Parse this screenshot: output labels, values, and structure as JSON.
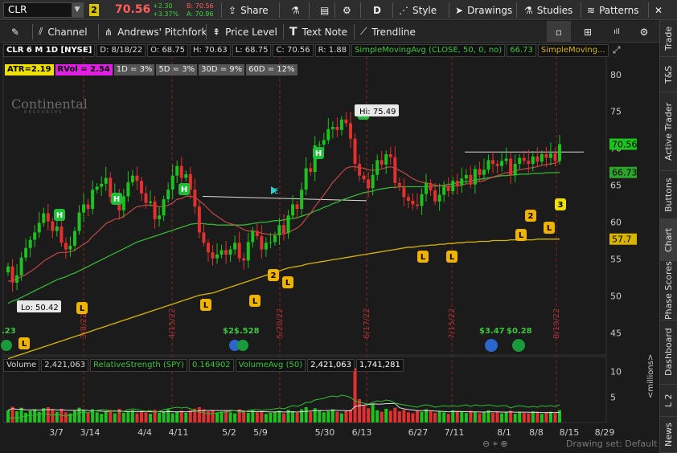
{
  "symbol": "CLR",
  "link_badge": "2",
  "last_price": "70.56",
  "change": "+2.30",
  "change_pct": "+3.37%",
  "bid": "B: 70.56",
  "ask": "A: 70.96",
  "toolbar": {
    "share": "Share",
    "d_label": "D",
    "style": "Style",
    "drawings": "Drawings",
    "studies": "Studies",
    "patterns": "Patterns"
  },
  "drawing_tools": [
    "Channel",
    "Andrews' Pitchfork",
    "Price Level",
    "Text Note",
    "Trendline"
  ],
  "right_tabs": [
    "Trade",
    "T&S",
    "Active Trader",
    "Buttons",
    "Chart",
    "Phase Scores",
    "Dashboard",
    "L 2",
    "News"
  ],
  "info": {
    "title": "CLR 6 M 1D [NYSE]",
    "date": "D: 8/18/22",
    "open": "O: 68.75",
    "high": "H: 70.63",
    "low": "L: 68.75",
    "close": "C: 70.56",
    "range": "R: 1.88",
    "sma50_label": "SimpleMovingAvg (CLOSE, 50, 0, no)",
    "sma50_value": "66.73",
    "sma200_label": "SimpleMoving..."
  },
  "stats": {
    "atr": "ATR=2.19",
    "rvol": "RVol = 2.54",
    "d1": "1D = 3%",
    "d5": "5D = 3%",
    "d30": "30D = 9%",
    "d60": "60D = 12%"
  },
  "logo": {
    "name": "Continental",
    "sub": "RESOURCES"
  },
  "price_axis": {
    "ticks": [
      "80",
      "75",
      "70",
      "65",
      "60",
      "55",
      "50",
      "45"
    ],
    "last_tag": "70.56",
    "sma50_tag": "66.73",
    "sma200_tag": "57.7"
  },
  "annotations": {
    "hi": "Hi: 75.49",
    "lo": "Lo: 50.42",
    "partial_left": ".23",
    "div1": "$2$.528",
    "div2": "$3.47",
    "div3": "$0.28"
  },
  "vertical_dates": [
    "3/8/22",
    "4/15/22",
    "5/20/22",
    "6/17/22",
    "7/15/22",
    "8/19/22"
  ],
  "volume": {
    "label": "Volume",
    "value": "2,421,063",
    "rs_label": "RelativeStrength (SPY)",
    "rs_value": "0.164902",
    "vavg_label": "VolumeAvg (50)",
    "vavg_value": "2,421,063",
    "vavg_value2": "1,741,281",
    "axis_ticks": [
      "10",
      "5"
    ],
    "units": "<millions>"
  },
  "x_axis": [
    "3/7",
    "3/14",
    "4/4",
    "4/11",
    "5/2",
    "5/9",
    "5/30",
    "6/13",
    "6/27",
    "7/11",
    "8/1",
    "8/8",
    "8/15",
    "8/29"
  ],
  "footer": {
    "drawing_set": "Drawing set: Default"
  },
  "colors": {
    "up": "#1ec21e",
    "down": "#e23030",
    "sma50": "#36b436",
    "sma200": "#d7b400",
    "ema": "#e05050",
    "vline": "#8a1f1f"
  },
  "chart_data": {
    "type": "candlestick",
    "x": [
      "2/18",
      "2/22",
      "2/23",
      "2/24",
      "2/25",
      "2/28",
      "3/1",
      "3/2",
      "3/3",
      "3/4",
      "3/7",
      "3/8",
      "3/9",
      "3/10",
      "3/11",
      "3/14",
      "3/15",
      "3/16",
      "3/17",
      "3/18",
      "3/21",
      "3/22",
      "3/23",
      "3/24",
      "3/25",
      "3/28",
      "3/29",
      "3/30",
      "3/31",
      "4/1",
      "4/4",
      "4/5",
      "4/6",
      "4/7",
      "4/8",
      "4/11",
      "4/12",
      "4/13",
      "4/14",
      "4/18",
      "4/19",
      "4/20",
      "4/21",
      "4/22",
      "4/25",
      "4/26",
      "4/27",
      "4/28",
      "4/29",
      "5/2",
      "5/3",
      "5/4",
      "5/5",
      "5/6",
      "5/9",
      "5/10",
      "5/11",
      "5/12",
      "5/13",
      "5/16",
      "5/17",
      "5/18",
      "5/19",
      "5/20",
      "5/23",
      "5/24",
      "5/25",
      "5/26",
      "5/27",
      "5/31",
      "6/1",
      "6/2",
      "6/3",
      "6/6",
      "6/7",
      "6/8",
      "6/9",
      "6/10",
      "6/13",
      "6/14",
      "6/15",
      "6/16",
      "6/17",
      "6/21",
      "6/22",
      "6/23",
      "6/24",
      "6/27",
      "6/28",
      "6/29",
      "6/30",
      "7/1",
      "7/5",
      "7/6",
      "7/7",
      "7/8",
      "7/11",
      "7/12",
      "7/13",
      "7/14",
      "7/15",
      "7/18",
      "7/19",
      "7/20",
      "7/21",
      "7/22",
      "7/25",
      "7/26",
      "7/27",
      "7/28",
      "7/29",
      "8/1",
      "8/2",
      "8/3",
      "8/4",
      "8/5",
      "8/8",
      "8/9",
      "8/10",
      "8/11",
      "8/12",
      "8/15",
      "8/16",
      "8/17",
      "8/18"
    ],
    "close": [
      54.0,
      51.8,
      52.8,
      55.2,
      56.5,
      57.6,
      58.6,
      59.9,
      61.2,
      60.1,
      58.8,
      59.4,
      57.2,
      56.3,
      56.8,
      58.8,
      61.3,
      62.4,
      61.8,
      64.4,
      64.8,
      65.2,
      66.0,
      63.4,
      64.0,
      61.6,
      63.5,
      65.4,
      66.3,
      65.6,
      63.9,
      62.6,
      62.8,
      60.4,
      60.9,
      63.1,
      64.4,
      66.3,
      67.6,
      66.0,
      66.5,
      64.4,
      62.1,
      58.6,
      57.2,
      55.9,
      55.1,
      55.6,
      56.2,
      55.6,
      56.3,
      57.2,
      55.1,
      54.8,
      57.3,
      58.8,
      58.1,
      56.3,
      57.2,
      57.3,
      58.2,
      59.6,
      58.5,
      60.9,
      62.4,
      61.8,
      64.4,
      67.3,
      66.8,
      70.4,
      70.5,
      71.1,
      72.6,
      72.9,
      72.5,
      73.9,
      73.4,
      71.3,
      67.9,
      66.3,
      65.8,
      64.6,
      66.4,
      68.4,
      67.8,
      69.2,
      68.8,
      65.3,
      64.7,
      63.4,
      62.9,
      62.4,
      62.2,
      63.8,
      65.3,
      64.3,
      62.8,
      63.7,
      64.8,
      64.2,
      65.6,
      65.0,
      65.9,
      66.4,
      65.1,
      67.2,
      66.4,
      67.1,
      68.4,
      67.9,
      67.6,
      68.3,
      68.6,
      66.4,
      67.9,
      68.7,
      68.3,
      67.9,
      68.9,
      68.2,
      69.2,
      68.7,
      69.3,
      68.3,
      70.56
    ],
    "ema_20": [
      52.0,
      52.1,
      52.3,
      52.6,
      52.9,
      53.3,
      53.7,
      54.2,
      54.7,
      55.1,
      55.4,
      55.8,
      55.9,
      55.9,
      56.0,
      56.2,
      56.6,
      57.0,
      57.4,
      58.1,
      58.6,
      59.2,
      59.8,
      60.1,
      60.4,
      60.5,
      60.8,
      61.2,
      61.7,
      62.1,
      62.2,
      62.3,
      62.3,
      62.2,
      62.1,
      62.1,
      62.3,
      62.6,
      63.1,
      63.2,
      63.5,
      63.5,
      63.4,
      62.9,
      62.4,
      61.8,
      61.2,
      60.8,
      60.4,
      60.0,
      59.8,
      59.6,
      59.3,
      59.0,
      58.8,
      58.8,
      58.7,
      58.5,
      58.4,
      58.3,
      58.3,
      58.4,
      58.4,
      58.6,
      58.9,
      59.2,
      59.7,
      60.5,
      61.2,
      62.1,
      62.9,
      63.7,
      64.5,
      65.4,
      66.0,
      66.7,
      67.3,
      67.5,
      67.5,
      67.4,
      67.3,
      67.1,
      67.0,
      67.1,
      67.2,
      67.4,
      67.5,
      67.3,
      67.0,
      66.7,
      66.3,
      65.9,
      65.6,
      65.4,
      65.3,
      65.2,
      65.0,
      64.9,
      64.9,
      64.8,
      64.9,
      64.9,
      65.0,
      65.2,
      65.2,
      65.4,
      65.5,
      65.6,
      65.9,
      66.1,
      66.3,
      66.5,
      66.7,
      66.7,
      66.9,
      67.1,
      67.2,
      67.3,
      67.4,
      67.5,
      67.7,
      67.8,
      67.9,
      68.0,
      68.3
    ],
    "sma_50": [
      49.0,
      49.3,
      49.5,
      49.8,
      50.1,
      50.4,
      50.7,
      51.0,
      51.3,
      51.6,
      51.9,
      52.2,
      52.4,
      52.6,
      52.9,
      53.1,
      53.4,
      53.7,
      54.0,
      54.3,
      54.6,
      54.9,
      55.2,
      55.5,
      55.8,
      56.1,
      56.4,
      56.7,
      57.0,
      57.3,
      57.5,
      57.7,
      57.9,
      58.1,
      58.3,
      58.5,
      58.7,
      58.9,
      59.1,
      59.3,
      59.5,
      59.7,
      59.8,
      59.8,
      59.8,
      59.7,
      59.7,
      59.6,
      59.6,
      59.6,
      59.6,
      59.6,
      59.6,
      59.6,
      59.7,
      59.8,
      59.9,
      60.0,
      60.0,
      60.1,
      60.2,
      60.2,
      60.3,
      60.4,
      60.5,
      60.6,
      60.8,
      61.0,
      61.2,
      61.5,
      61.7,
      62.0,
      62.2,
      62.5,
      62.7,
      63.0,
      63.2,
      63.4,
      63.6,
      63.8,
      64.0,
      64.1,
      64.2,
      64.4,
      64.5,
      64.6,
      64.7,
      64.7,
      64.8,
      64.8,
      64.8,
      64.8,
      64.8,
      64.8,
      64.8,
      64.8,
      64.9,
      64.9,
      65.0,
      65.1,
      65.2,
      65.3,
      65.4,
      65.5,
      65.6,
      65.7,
      65.8,
      65.9,
      66.0,
      66.1,
      66.2,
      66.3,
      66.3,
      66.4,
      66.4,
      66.5,
      66.5,
      66.5,
      66.6,
      66.6,
      66.6,
      66.7,
      66.7,
      66.7,
      66.73
    ],
    "sma_200": [
      41.5,
      41.7,
      41.9,
      42.1,
      42.3,
      42.5,
      42.7,
      42.9,
      43.1,
      43.3,
      43.5,
      43.7,
      43.9,
      44.1,
      44.3,
      44.5,
      44.7,
      44.9,
      45.1,
      45.3,
      45.5,
      45.7,
      45.9,
      46.1,
      46.3,
      46.5,
      46.7,
      46.9,
      47.1,
      47.3,
      47.5,
      47.7,
      47.9,
      48.1,
      48.3,
      48.5,
      48.7,
      48.9,
      49.1,
      49.3,
      49.5,
      49.7,
      49.9,
      50.1,
      50.2,
      50.3,
      50.4,
      50.6,
      50.8,
      51.0,
      51.2,
      51.4,
      51.6,
      51.8,
      52.0,
      52.2,
      52.4,
      52.6,
      52.8,
      53.0,
      53.2,
      53.4,
      53.6,
      53.8,
      53.9,
      54.0,
      54.1,
      54.3,
      54.4,
      54.5,
      54.6,
      54.7,
      54.8,
      54.9,
      55.0,
      55.1,
      55.2,
      55.3,
      55.4,
      55.5,
      55.6,
      55.7,
      55.8,
      55.9,
      56.0,
      56.1,
      56.2,
      56.3,
      56.4,
      56.5,
      56.6,
      56.6,
      56.7,
      56.8,
      56.8,
      56.9,
      56.9,
      57.0,
      57.0,
      57.1,
      57.1,
      57.2,
      57.2,
      57.3,
      57.3,
      57.3,
      57.4,
      57.4,
      57.4,
      57.5,
      57.5,
      57.5,
      57.5,
      57.6,
      57.6,
      57.6,
      57.6,
      57.6,
      57.6,
      57.7,
      57.7,
      57.7,
      57.7,
      57.7,
      57.7
    ],
    "high": 75.49,
    "low": 50.42,
    "ylim": [
      42,
      84
    ],
    "volume_millions": [
      2.4,
      3.1,
      2.2,
      2.9,
      1.9,
      2.3,
      2.6,
      2.1,
      2.8,
      3.0,
      2.5,
      2.1,
      2.7,
      2.0,
      1.8,
      2.3,
      2.9,
      2.4,
      1.9,
      2.6,
      2.0,
      1.7,
      2.2,
      2.5,
      1.8,
      2.7,
      1.9,
      2.1,
      2.4,
      1.8,
      2.2,
      2.0,
      1.7,
      2.5,
      1.9,
      2.2,
      2.6,
      1.8,
      2.1,
      2.3,
      1.9,
      2.4,
      2.7,
      3.0,
      2.6,
      2.2,
      2.5,
      1.9,
      2.1,
      2.3,
      2.0,
      1.8,
      2.6,
      2.2,
      1.9,
      2.4,
      2.0,
      2.2,
      1.7,
      1.9,
      2.1,
      2.3,
      1.8,
      2.5,
      2.2,
      1.9,
      2.6,
      3.0,
      2.1,
      2.8,
      2.4,
      2.0,
      2.2,
      2.6,
      2.1,
      1.8,
      2.3,
      2.5,
      10.7,
      4.6,
      3.4,
      2.8,
      3.6,
      2.4,
      2.1,
      2.7,
      2.3,
      2.9,
      2.2,
      2.5,
      2.0,
      1.8,
      2.4,
      2.1,
      2.6,
      2.2,
      1.9,
      2.3,
      2.0,
      1.7,
      2.4,
      2.1,
      2.2,
      1.9,
      2.3,
      2.0,
      1.8,
      2.1,
      2.4,
      1.9,
      2.2,
      1.8,
      2.0,
      2.3,
      1.7,
      2.1,
      1.9,
      1.8,
      2.2,
      2.0,
      1.7,
      1.9,
      2.1,
      1.8,
      2.42
    ],
    "relative_strength": [
      3.0,
      3.1,
      3.0,
      3.2,
      3.3,
      3.4,
      3.4,
      3.5,
      3.6,
      3.5,
      3.4,
      3.5,
      3.4,
      3.3,
      3.4,
      3.5,
      3.7,
      3.8,
      3.7,
      3.9,
      4.0,
      4.1,
      4.1,
      3.9,
      4.0,
      3.8,
      3.9,
      4.1,
      4.2,
      4.1,
      4.0,
      3.9,
      4.0,
      3.8,
      3.9,
      4.1,
      4.2,
      4.3,
      4.4,
      4.3,
      4.4,
      4.2,
      4.0,
      3.8,
      3.7,
      3.6,
      3.6,
      3.7,
      3.8,
      3.8,
      3.9,
      4.0,
      3.8,
      3.8,
      4.0,
      4.1,
      4.1,
      4.0,
      4.1,
      4.1,
      4.2,
      4.3,
      4.2,
      4.4,
      4.6,
      4.5,
      4.7,
      5.0,
      5.0,
      5.3,
      5.4,
      5.5,
      5.7,
      5.8,
      5.7,
      5.9,
      5.8,
      5.6,
      5.2,
      5.0,
      4.9,
      4.8,
      5.0,
      5.2,
      5.1,
      5.3,
      5.2,
      4.9,
      4.8,
      4.7,
      4.6,
      4.5,
      4.4,
      4.6,
      4.7,
      4.6,
      4.4,
      4.5,
      4.6,
      4.5,
      4.6,
      4.5,
      4.6,
      4.7,
      4.5,
      4.7,
      4.6,
      4.6,
      4.7,
      4.6,
      4.5,
      4.6,
      4.6,
      4.3,
      4.5,
      4.6,
      4.5,
      4.4,
      4.5,
      4.4,
      4.6,
      4.5,
      4.6,
      4.5,
      4.7
    ]
  }
}
